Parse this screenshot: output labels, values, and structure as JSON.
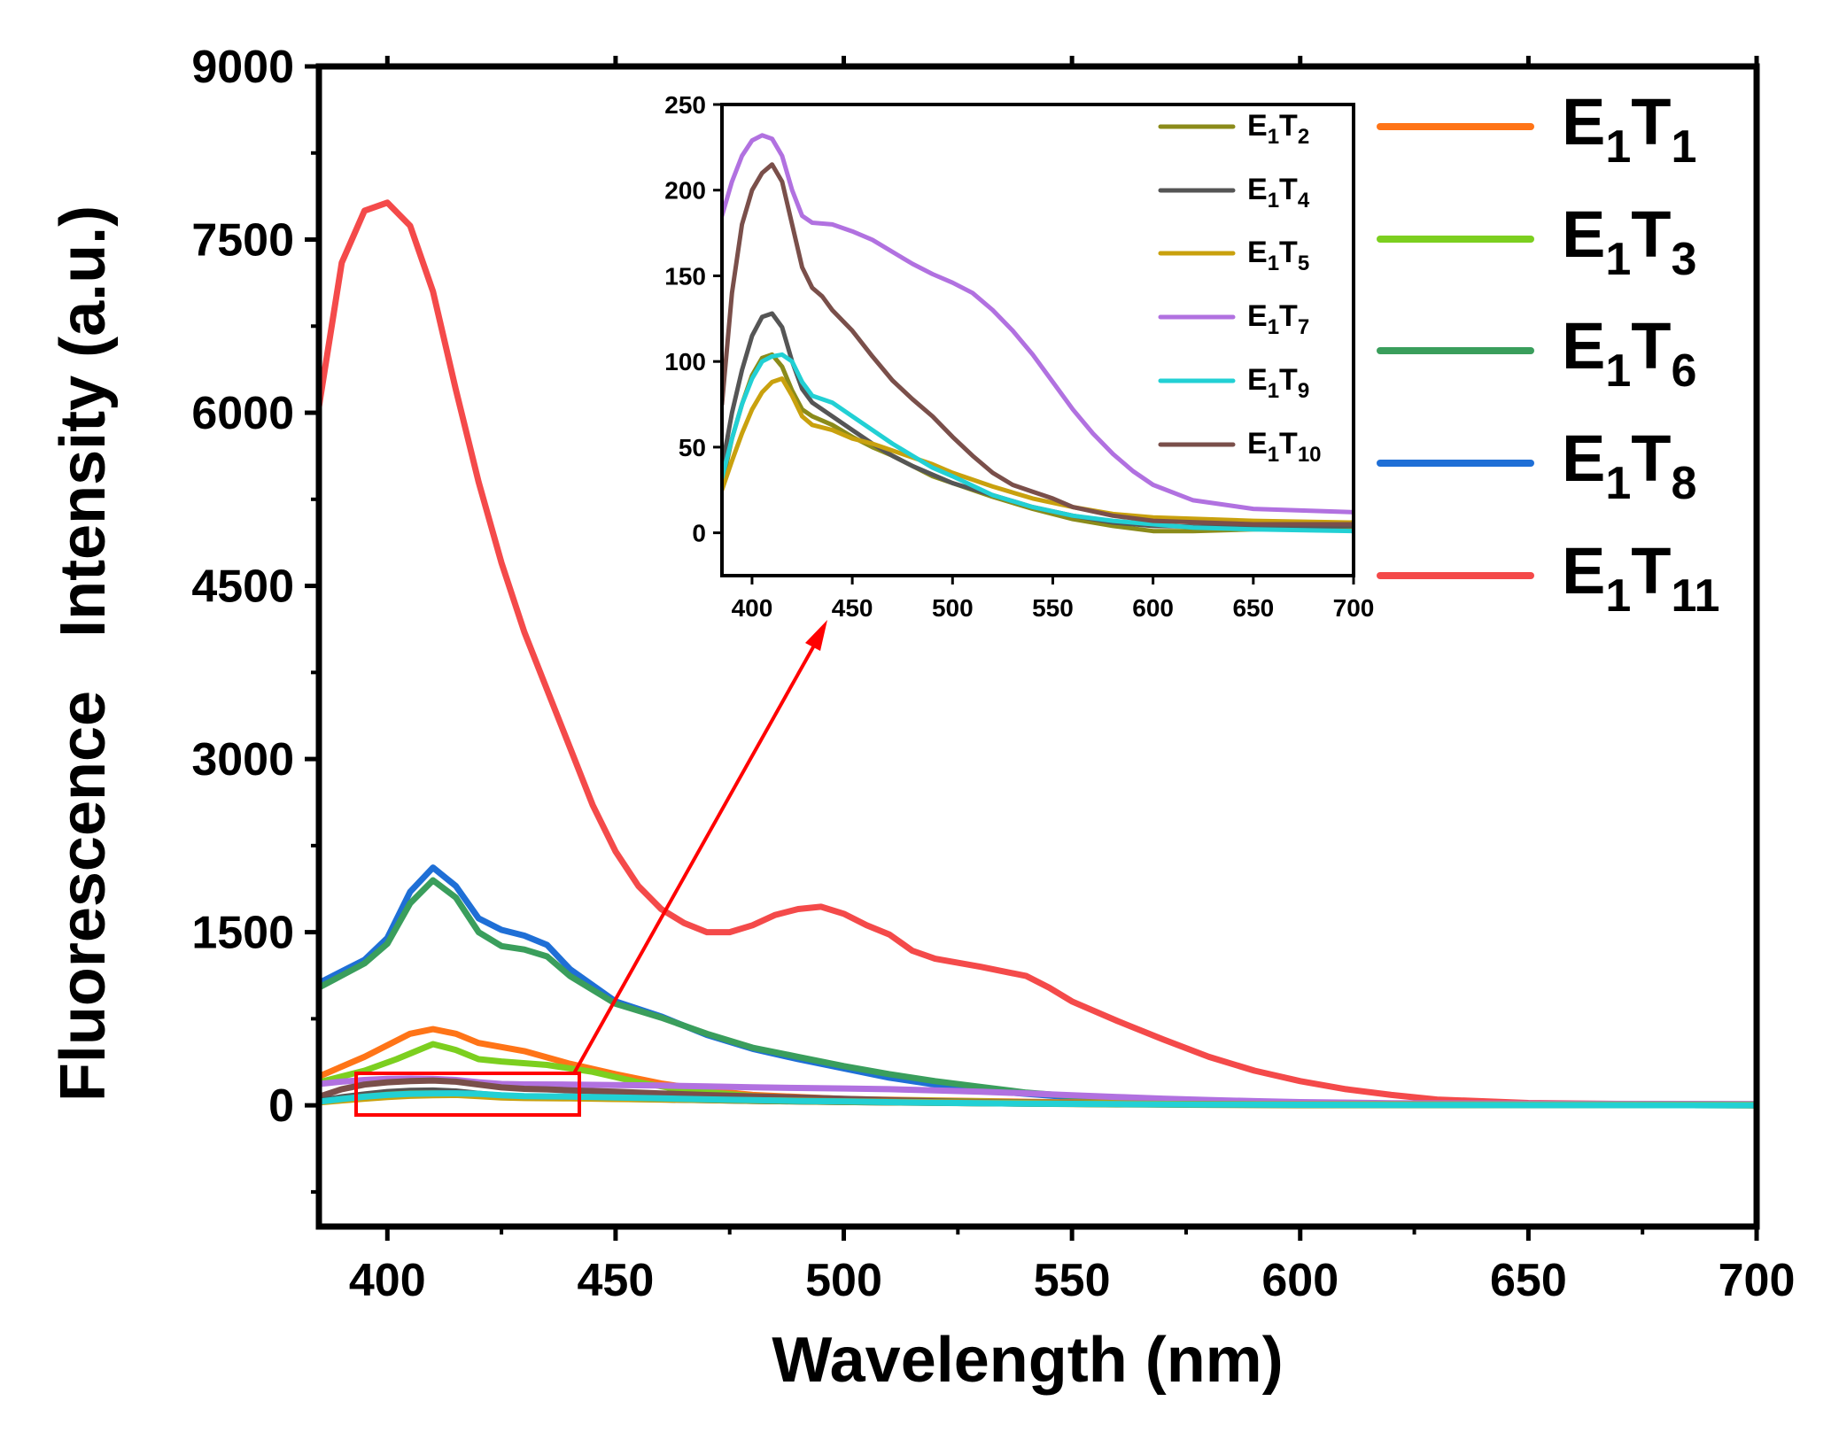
{
  "chart_data": [
    {
      "type": "line",
      "xlabel": "Wavelength (nm)",
      "ylabel": "Fluorescence   Intensity (a.u.)",
      "xlim": [
        385,
        700
      ],
      "ylim": [
        -1050,
        9000
      ],
      "xticks": [
        "400",
        "450",
        "500",
        "550",
        "600",
        "650",
        "700"
      ],
      "yticks": [
        "0",
        "1500",
        "3000",
        "4500",
        "6000",
        "7500",
        "9000"
      ],
      "grid": false,
      "legend_position": "right",
      "series": [
        {
          "name": "E1T1",
          "label_main": "E",
          "sub1": "1",
          "label_mid": "T",
          "sub2": "1",
          "color": "#ff7417",
          "x": [
            385,
            395,
            405,
            410,
            415,
            420,
            430,
            440,
            450,
            460,
            470,
            480,
            500,
            550,
            600,
            650,
            700
          ],
          "y": [
            250,
            420,
            620,
            660,
            620,
            540,
            470,
            360,
            270,
            190,
            130,
            90,
            55,
            25,
            10,
            5,
            0
          ]
        },
        {
          "name": "E1T3",
          "label_main": "E",
          "sub1": "1",
          "label_mid": "T",
          "sub2": "3",
          "color": "#7ccf1f",
          "x": [
            385,
            395,
            402,
            410,
            415,
            420,
            425,
            435,
            445,
            455,
            465,
            480,
            500,
            550,
            600,
            650,
            700
          ],
          "y": [
            200,
            300,
            400,
            530,
            480,
            400,
            380,
            350,
            290,
            200,
            130,
            80,
            50,
            20,
            8,
            3,
            0
          ]
        },
        {
          "name": "E1T6",
          "label_main": "E",
          "sub1": "1",
          "label_mid": "T",
          "sub2": "6",
          "color": "#3a9e5c",
          "x": [
            385,
            395,
            400,
            405,
            410,
            415,
            420,
            425,
            430,
            435,
            440,
            450,
            460,
            470,
            480,
            490,
            500,
            510,
            520,
            530,
            540,
            550,
            560,
            580,
            600,
            650,
            700
          ],
          "y": [
            1020,
            1230,
            1400,
            1750,
            1950,
            1800,
            1500,
            1380,
            1350,
            1290,
            1120,
            880,
            760,
            620,
            500,
            420,
            340,
            270,
            210,
            160,
            110,
            80,
            50,
            25,
            12,
            4,
            0
          ]
        },
        {
          "name": "E1T8",
          "label_main": "E",
          "sub1": "1",
          "label_mid": "T",
          "sub2": "8",
          "color": "#1f6fd6",
          "x": [
            385,
            395,
            400,
            405,
            410,
            415,
            420,
            425,
            430,
            435,
            440,
            450,
            460,
            470,
            480,
            490,
            500,
            510,
            520,
            530,
            540,
            550,
            560,
            580,
            600,
            650,
            700
          ],
          "y": [
            1060,
            1260,
            1450,
            1850,
            2060,
            1900,
            1620,
            1520,
            1470,
            1390,
            1180,
            900,
            770,
            610,
            490,
            400,
            320,
            240,
            180,
            130,
            100,
            70,
            45,
            22,
            10,
            4,
            0
          ]
        },
        {
          "name": "E1T11",
          "label_main": "E",
          "sub1": "1",
          "label_mid": "T",
          "sub2": "11",
          "color": "#f44a4a",
          "x": [
            385,
            390,
            395,
            400,
            405,
            410,
            415,
            420,
            425,
            430,
            435,
            440,
            445,
            450,
            455,
            460,
            465,
            470,
            475,
            480,
            485,
            490,
            495,
            500,
            505,
            510,
            515,
            520,
            530,
            540,
            545,
            550,
            560,
            570,
            580,
            590,
            600,
            610,
            620,
            630,
            650,
            700
          ],
          "y": [
            6050,
            7300,
            7750,
            7820,
            7620,
            7050,
            6200,
            5400,
            4700,
            4100,
            3600,
            3100,
            2600,
            2200,
            1900,
            1700,
            1580,
            1500,
            1500,
            1560,
            1650,
            1700,
            1720,
            1660,
            1560,
            1480,
            1340,
            1270,
            1200,
            1120,
            1020,
            900,
            730,
            570,
            420,
            300,
            210,
            140,
            90,
            50,
            20,
            0
          ]
        },
        {
          "name": "E1T2",
          "label_main": "E",
          "sub1": "1",
          "label_mid": "T",
          "sub2": "2",
          "color": "#8b8b1a",
          "x": [
            385,
            390,
            395,
            400,
            405,
            410,
            415,
            420,
            425,
            430,
            440,
            450,
            460,
            470,
            480,
            490,
            500,
            520,
            540,
            560,
            580,
            600,
            620,
            650,
            700
          ],
          "y": [
            28,
            55,
            75,
            92,
            102,
            104,
            97,
            83,
            72,
            68,
            63,
            56,
            50,
            45,
            39,
            33,
            29,
            21,
            14,
            8,
            4,
            1,
            1,
            2,
            3
          ]
        },
        {
          "name": "E1T4",
          "label_main": "E",
          "sub1": "1",
          "label_mid": "T",
          "sub2": "4",
          "color": "#555555",
          "x": [
            385,
            390,
            395,
            400,
            405,
            410,
            415,
            420,
            425,
            430,
            440,
            450,
            460,
            470,
            480,
            490,
            500,
            520,
            540,
            560,
            580,
            600,
            650,
            700
          ],
          "y": [
            38,
            70,
            95,
            115,
            126,
            128,
            120,
            100,
            84,
            76,
            68,
            60,
            52,
            45,
            39,
            34,
            29,
            22,
            15,
            10,
            6,
            4,
            3,
            4
          ]
        },
        {
          "name": "E1T5",
          "label_main": "E",
          "sub1": "1",
          "label_mid": "T",
          "sub2": "5",
          "color": "#c9a10e",
          "x": [
            385,
            390,
            395,
            400,
            405,
            410,
            415,
            420,
            425,
            430,
            440,
            450,
            460,
            470,
            480,
            490,
            500,
            520,
            540,
            560,
            580,
            600,
            650,
            700
          ],
          "y": [
            25,
            42,
            58,
            72,
            82,
            88,
            90,
            80,
            68,
            63,
            60,
            55,
            52,
            48,
            44,
            40,
            35,
            27,
            20,
            15,
            11,
            9,
            7,
            6
          ]
        },
        {
          "name": "E1T7",
          "label_main": "E",
          "sub1": "1",
          "label_mid": "T",
          "sub2": "7",
          "color": "#b171e0",
          "x": [
            385,
            390,
            395,
            400,
            405,
            410,
            415,
            420,
            425,
            430,
            440,
            450,
            460,
            470,
            480,
            490,
            500,
            510,
            520,
            530,
            540,
            550,
            560,
            570,
            580,
            590,
            600,
            620,
            650,
            700
          ],
          "y": [
            185,
            205,
            220,
            229,
            232,
            230,
            220,
            200,
            185,
            181,
            180,
            176,
            171,
            164,
            157,
            151,
            146,
            140,
            130,
            118,
            104,
            88,
            72,
            58,
            46,
            36,
            28,
            19,
            14,
            12
          ]
        },
        {
          "name": "E1T9",
          "label_main": "E",
          "sub1": "1",
          "label_mid": "T",
          "sub2": "9",
          "color": "#22d0d4",
          "x": [
            385,
            390,
            395,
            400,
            405,
            410,
            415,
            420,
            425,
            430,
            435,
            440,
            450,
            460,
            470,
            480,
            490,
            500,
            520,
            540,
            560,
            580,
            600,
            620,
            650,
            700
          ],
          "y": [
            32,
            55,
            75,
            90,
            100,
            103,
            104,
            100,
            88,
            80,
            78,
            76,
            68,
            60,
            52,
            45,
            38,
            33,
            22,
            15,
            10,
            7,
            5,
            3,
            2,
            1
          ]
        },
        {
          "name": "E1T10",
          "label_main": "E",
          "sub1": "1",
          "label_mid": "T",
          "sub2": "10",
          "color": "#7a4f4a",
          "x": [
            385,
            390,
            395,
            400,
            405,
            410,
            415,
            420,
            425,
            430,
            435,
            440,
            450,
            460,
            470,
            480,
            490,
            500,
            510,
            520,
            530,
            540,
            550,
            560,
            580,
            600,
            650,
            700
          ],
          "y": [
            75,
            140,
            180,
            200,
            210,
            215,
            205,
            180,
            155,
            143,
            138,
            130,
            118,
            103,
            89,
            78,
            68,
            56,
            45,
            35,
            28,
            24,
            20,
            15,
            10,
            7,
            5,
            5
          ]
        }
      ]
    },
    {
      "type": "line",
      "role": "inset",
      "xlim": [
        385,
        700
      ],
      "ylim": [
        -25,
        250
      ],
      "xticks": [
        "400",
        "450",
        "500",
        "550",
        "600",
        "650",
        "700"
      ],
      "yticks": [
        "0",
        "50",
        "100",
        "150",
        "200",
        "250"
      ],
      "series_names": [
        "E1T2",
        "E1T4",
        "E1T5",
        "E1T7",
        "E1T9",
        "E1T10"
      ]
    }
  ],
  "colors": {
    "highlight_box": "#ff0000",
    "arrow": "#ff0000"
  }
}
